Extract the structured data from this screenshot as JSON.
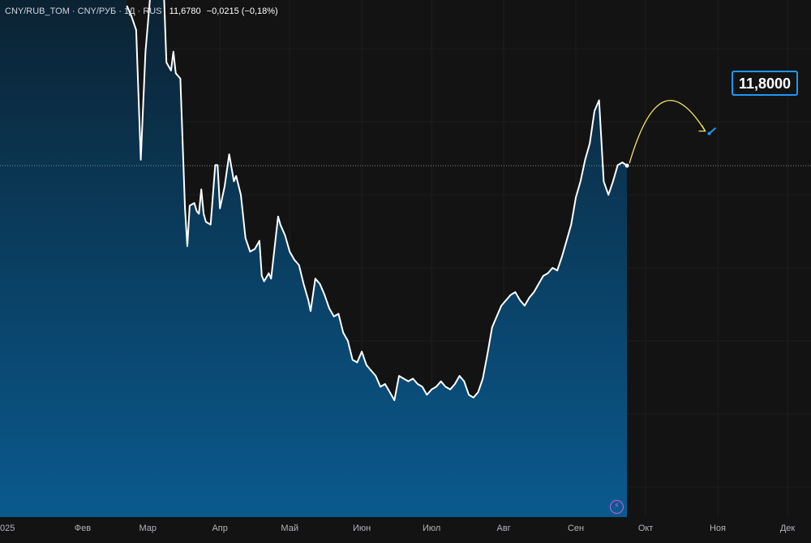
{
  "legend": {
    "symbol": "CNY/RUB_TOM · CNY/РУБ · 1Д · RUS",
    "price": "11,6780",
    "change": "−0,0215 (−0,18%)"
  },
  "forecast": {
    "label": "11,8000",
    "value": 11.8,
    "target_date": "2025-10-28"
  },
  "colors": {
    "background": "#131313",
    "grid": "#1e1e1e",
    "line": "#ffffff",
    "area_top": "#0b2232",
    "area_bottom": "#0a5a8f",
    "forecast_arrow": "#f5e663",
    "forecast_accent": "#2196f3",
    "flash_badge": "#d05ce3"
  },
  "icons": {
    "flash_badge": "lightning-icon"
  },
  "chart_data": {
    "type": "area",
    "title": "",
    "xlabel": "",
    "ylabel": "",
    "x_tick_labels": [
      "025",
      "Фев",
      "Мар",
      "Апр",
      "Май",
      "Июн",
      "Июл",
      "Авг",
      "Сен",
      "Окт",
      "Ноя",
      "Дек"
    ],
    "x_tick_dates": [
      "2025-01-01",
      "2025-02-01",
      "2025-03-01",
      "2025-04-01",
      "2025-05-01",
      "2025-06-01",
      "2025-07-01",
      "2025-08-01",
      "2025-09-01",
      "2025-10-01",
      "2025-11-01",
      "2025-12-01"
    ],
    "xlim": [
      "2025-01-01",
      "2025-12-18"
    ],
    "ylim": [
      10.54,
      12.27
    ],
    "y_axis_visible": false,
    "grid": true,
    "current_price_line": 11.678,
    "series": [
      {
        "points": [
          [
            "2025-02-20",
            12.27
          ],
          [
            "2025-02-22",
            12.23
          ],
          [
            "2025-02-24",
            12.18
          ],
          [
            "2025-02-26",
            11.7
          ],
          [
            "2025-02-28",
            12.1
          ],
          [
            "2025-03-02",
            12.3
          ],
          [
            "2025-03-04",
            12.3
          ],
          [
            "2025-03-06",
            12.3
          ],
          [
            "2025-03-08",
            12.3
          ],
          [
            "2025-03-09",
            12.06
          ],
          [
            "2025-03-11",
            12.03
          ],
          [
            "2025-03-12",
            12.1
          ],
          [
            "2025-03-13",
            12.02
          ],
          [
            "2025-03-15",
            12.0
          ],
          [
            "2025-03-17",
            11.52
          ],
          [
            "2025-03-18",
            11.38
          ],
          [
            "2025-03-19",
            11.53
          ],
          [
            "2025-03-21",
            11.54
          ],
          [
            "2025-03-22",
            11.51
          ],
          [
            "2025-03-23",
            11.5
          ],
          [
            "2025-03-24",
            11.59
          ],
          [
            "2025-03-25",
            11.5
          ],
          [
            "2025-03-26",
            11.47
          ],
          [
            "2025-03-28",
            11.46
          ],
          [
            "2025-03-30",
            11.68
          ],
          [
            "2025-03-31",
            11.68
          ],
          [
            "2025-04-01",
            11.52
          ],
          [
            "2025-04-03",
            11.6
          ],
          [
            "2025-04-05",
            11.72
          ],
          [
            "2025-04-07",
            11.62
          ],
          [
            "2025-04-08",
            11.64
          ],
          [
            "2025-04-10",
            11.57
          ],
          [
            "2025-04-12",
            11.41
          ],
          [
            "2025-04-14",
            11.36
          ],
          [
            "2025-04-16",
            11.37
          ],
          [
            "2025-04-18",
            11.4
          ],
          [
            "2025-04-19",
            11.27
          ],
          [
            "2025-04-20",
            11.25
          ],
          [
            "2025-04-22",
            11.28
          ],
          [
            "2025-04-23",
            11.26
          ],
          [
            "2025-04-26",
            11.49
          ],
          [
            "2025-04-27",
            11.46
          ],
          [
            "2025-04-29",
            11.42
          ],
          [
            "2025-05-01",
            11.36
          ],
          [
            "2025-05-03",
            11.33
          ],
          [
            "2025-05-05",
            11.31
          ],
          [
            "2025-05-07",
            11.24
          ],
          [
            "2025-05-09",
            11.18
          ],
          [
            "2025-05-10",
            11.14
          ],
          [
            "2025-05-12",
            11.26
          ],
          [
            "2025-05-14",
            11.24
          ],
          [
            "2025-05-16",
            11.2
          ],
          [
            "2025-05-18",
            11.15
          ],
          [
            "2025-05-20",
            11.12
          ],
          [
            "2025-05-22",
            11.13
          ],
          [
            "2025-05-24",
            11.06
          ],
          [
            "2025-05-26",
            11.03
          ],
          [
            "2025-05-28",
            10.96
          ],
          [
            "2025-05-30",
            10.95
          ],
          [
            "2025-06-01",
            10.99
          ],
          [
            "2025-06-03",
            10.94
          ],
          [
            "2025-06-05",
            10.92
          ],
          [
            "2025-06-07",
            10.9
          ],
          [
            "2025-06-09",
            10.86
          ],
          [
            "2025-06-11",
            10.87
          ],
          [
            "2025-06-13",
            10.84
          ],
          [
            "2025-06-15",
            10.81
          ],
          [
            "2025-06-17",
            10.9
          ],
          [
            "2025-06-19",
            10.89
          ],
          [
            "2025-06-21",
            10.88
          ],
          [
            "2025-06-23",
            10.89
          ],
          [
            "2025-06-25",
            10.87
          ],
          [
            "2025-06-27",
            10.86
          ],
          [
            "2025-06-29",
            10.83
          ],
          [
            "2025-07-01",
            10.85
          ],
          [
            "2025-07-03",
            10.86
          ],
          [
            "2025-07-05",
            10.88
          ],
          [
            "2025-07-07",
            10.86
          ],
          [
            "2025-07-09",
            10.85
          ],
          [
            "2025-07-11",
            10.87
          ],
          [
            "2025-07-13",
            10.9
          ],
          [
            "2025-07-15",
            10.88
          ],
          [
            "2025-07-17",
            10.83
          ],
          [
            "2025-07-19",
            10.82
          ],
          [
            "2025-07-21",
            10.84
          ],
          [
            "2025-07-23",
            10.89
          ],
          [
            "2025-07-25",
            10.98
          ],
          [
            "2025-07-27",
            11.08
          ],
          [
            "2025-07-29",
            11.12
          ],
          [
            "2025-07-31",
            11.16
          ],
          [
            "2025-08-02",
            11.18
          ],
          [
            "2025-08-04",
            11.2
          ],
          [
            "2025-08-06",
            11.21
          ],
          [
            "2025-08-08",
            11.18
          ],
          [
            "2025-08-10",
            11.16
          ],
          [
            "2025-08-12",
            11.19
          ],
          [
            "2025-08-14",
            11.21
          ],
          [
            "2025-08-16",
            11.24
          ],
          [
            "2025-08-18",
            11.27
          ],
          [
            "2025-08-20",
            11.28
          ],
          [
            "2025-08-22",
            11.3
          ],
          [
            "2025-08-24",
            11.29
          ],
          [
            "2025-08-26",
            11.34
          ],
          [
            "2025-08-28",
            11.4
          ],
          [
            "2025-08-30",
            11.46
          ],
          [
            "2025-09-01",
            11.56
          ],
          [
            "2025-09-03",
            11.62
          ],
          [
            "2025-09-05",
            11.7
          ],
          [
            "2025-09-07",
            11.76
          ],
          [
            "2025-09-09",
            11.88
          ],
          [
            "2025-09-11",
            11.92
          ],
          [
            "2025-09-13",
            11.62
          ],
          [
            "2025-09-15",
            11.57
          ],
          [
            "2025-09-17",
            11.62
          ],
          [
            "2025-09-19",
            11.68
          ],
          [
            "2025-09-21",
            11.69
          ],
          [
            "2025-09-23",
            11.678
          ]
        ]
      }
    ]
  }
}
